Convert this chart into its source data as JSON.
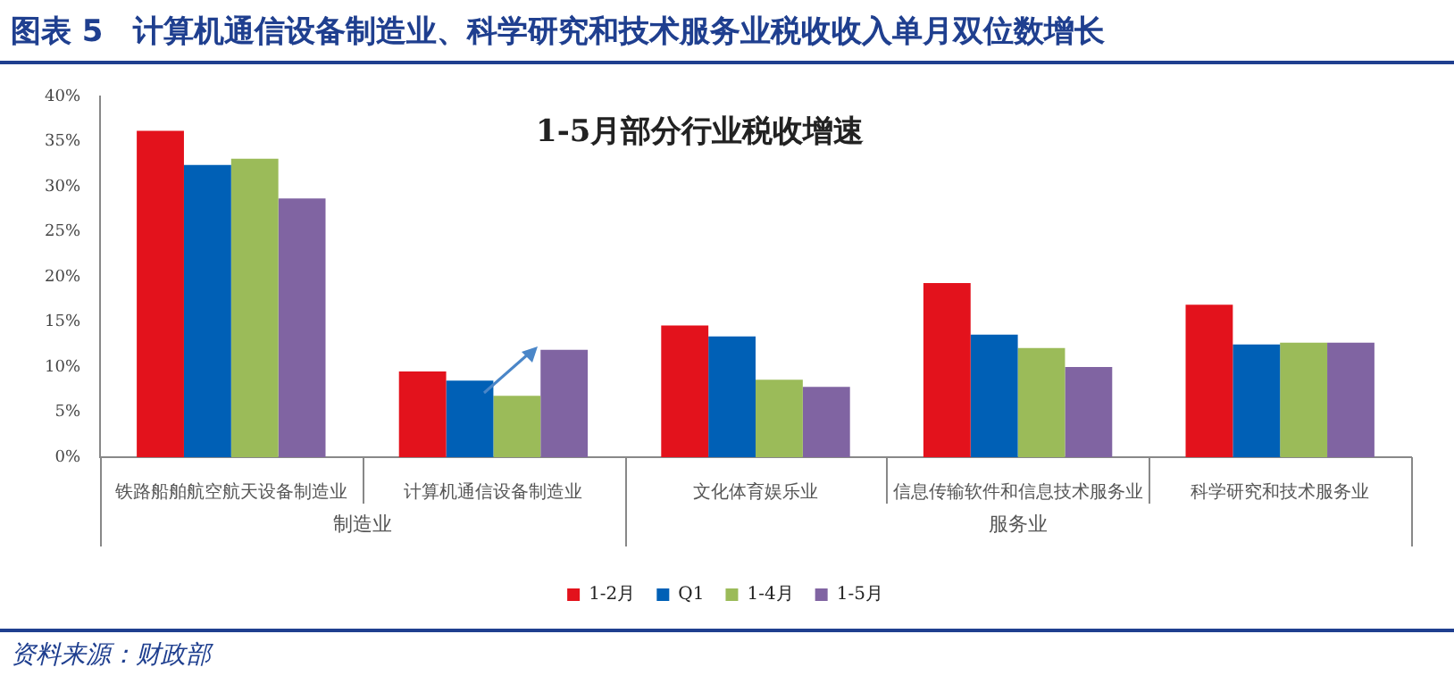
{
  "chart_data": {
    "type": "bar",
    "title": "图表 5　计算机通信设备制造业、科学研究和技术服务业税收收入单月双位数增长",
    "subtitle": "1-5月部分行业税收增速",
    "categories": [
      "铁路船舶航空航天设备制造业",
      "计算机通信设备制造业",
      "文化体育娱乐业",
      "信息传输软件和信息技术服务业",
      "科学研究和技术服务业"
    ],
    "series": [
      {
        "name": "1-2月",
        "color": "#e3121c",
        "values": [
          36.2,
          9.5,
          14.6,
          19.3,
          16.9
        ]
      },
      {
        "name": "Q1",
        "color": "#0060b6",
        "values": [
          32.4,
          8.5,
          13.4,
          13.6,
          12.5
        ]
      },
      {
        "name": "1-4月",
        "color": "#9bbb59",
        "values": [
          33.1,
          6.8,
          8.6,
          12.1,
          12.7
        ]
      },
      {
        "name": "1-5月",
        "color": "#8064a2",
        "values": [
          28.7,
          11.9,
          7.8,
          10.0,
          12.7
        ]
      }
    ],
    "ylim": [
      0,
      40
    ],
    "yticks": [
      {
        "value": 0,
        "label": "0%"
      },
      {
        "value": 5,
        "label": "5%"
      },
      {
        "value": 10,
        "label": "10%"
      },
      {
        "value": 15,
        "label": "15%"
      },
      {
        "value": 20,
        "label": "20%"
      },
      {
        "value": 25,
        "label": "25%"
      },
      {
        "value": 30,
        "label": "30%"
      },
      {
        "value": 35,
        "label": "35%"
      },
      {
        "value": 40,
        "label": "40%"
      }
    ],
    "grid": false,
    "legend": "bottom",
    "annotations": [
      "制造业",
      "服务业",
      "资料来源：财政部"
    ]
  }
}
